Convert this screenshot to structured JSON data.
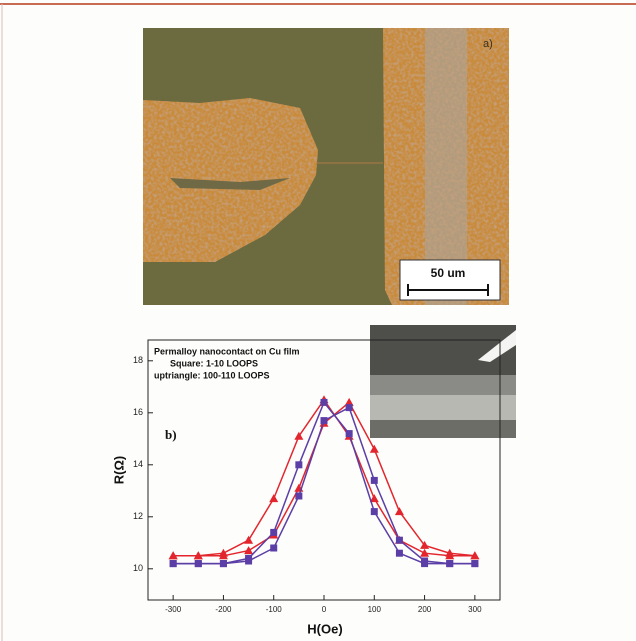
{
  "image_panel": {
    "label": "a)",
    "scale_bar": "50 um"
  },
  "chart_data": {
    "type": "line",
    "panel_label": "b)",
    "x_label": "H(Oe)",
    "y_label": "R(Ω)",
    "annotations": [
      "Permalloy nanocontact on Cu film",
      "Square:  1-10 LOOPS",
      "uptriangle: 100-110 LOOPS"
    ],
    "x": [
      -300,
      -250,
      -200,
      -150,
      -100,
      -50,
      0,
      50,
      100,
      150,
      200,
      250,
      300
    ],
    "series": [
      {
        "color": "#e3262d",
        "marker": "triangle",
        "values": [
          10.5,
          10.5,
          10.6,
          11.1,
          12.7,
          15.1,
          16.5,
          15.1,
          12.7,
          11.1,
          10.6,
          10.5,
          10.5
        ]
      },
      {
        "color": "#e3262d",
        "marker": "triangle",
        "values": [
          10.5,
          10.5,
          10.5,
          10.7,
          11.3,
          13.1,
          15.6,
          16.4,
          14.6,
          12.2,
          10.9,
          10.6,
          10.5
        ]
      },
      {
        "color": "#5b3ea6",
        "marker": "square",
        "values": [
          10.2,
          10.2,
          10.2,
          10.4,
          11.4,
          14.0,
          16.4,
          15.2,
          12.2,
          10.6,
          10.2,
          10.2,
          10.2
        ]
      },
      {
        "color": "#5b3ea6",
        "marker": "square",
        "values": [
          10.2,
          10.2,
          10.2,
          10.3,
          10.8,
          12.8,
          15.7,
          16.2,
          13.4,
          11.1,
          10.3,
          10.2,
          10.2
        ]
      }
    ],
    "xlim": [
      -350,
      350
    ],
    "xticks": [
      -300,
      -200,
      -100,
      0,
      100,
      200,
      300
    ],
    "ylim": [
      8.8,
      18.8
    ],
    "yticks": [
      10,
      12,
      14,
      16,
      18
    ]
  }
}
